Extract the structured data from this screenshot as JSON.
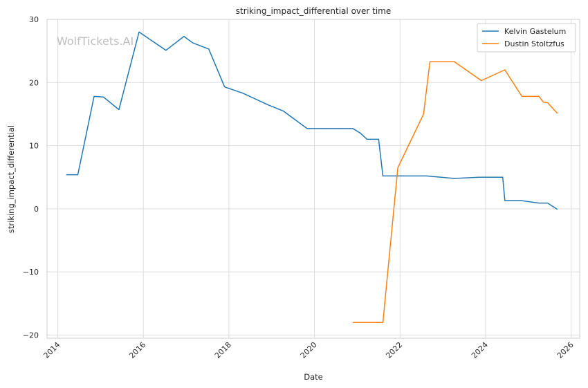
{
  "watermark": "WolfTickets.AI",
  "chart_data": {
    "type": "line",
    "title": "striking_impact_differential over time",
    "xlabel": "Date",
    "ylabel": "striking_impact_differential",
    "xlim": [
      2013.75,
      2026.2
    ],
    "ylim": [
      -20.5,
      30
    ],
    "x_ticks": [
      2014,
      2016,
      2018,
      2020,
      2022,
      2024,
      2026
    ],
    "x_tick_labels": [
      "2014",
      "2016",
      "2018",
      "2020",
      "2022",
      "2024",
      "2026"
    ],
    "y_ticks": [
      -20,
      -10,
      0,
      10,
      20,
      30
    ],
    "y_tick_labels": [
      "−20",
      "−10",
      "0",
      "10",
      "20",
      "30"
    ],
    "grid": true,
    "legend_position": "top-right",
    "series": [
      {
        "name": "Kelvin Gastelum",
        "color": "#1f77b4",
        "x": [
          2014.2,
          2014.47,
          2014.85,
          2015.07,
          2015.43,
          2015.9,
          2016.53,
          2016.95,
          2017.15,
          2017.53,
          2017.9,
          2018.33,
          2018.9,
          2019.27,
          2019.83,
          2020.9,
          2021.07,
          2021.23,
          2021.5,
          2021.6,
          2022.62,
          2023.27,
          2023.85,
          2024.4,
          2024.45,
          2024.83,
          2025.25,
          2025.45,
          2025.68
        ],
        "y": [
          5.4,
          5.4,
          17.8,
          17.7,
          15.7,
          28.0,
          25.1,
          27.3,
          26.3,
          25.3,
          19.3,
          18.3,
          16.5,
          15.5,
          12.7,
          12.7,
          12.0,
          11.0,
          11.0,
          5.2,
          5.2,
          4.8,
          5.0,
          5.0,
          1.3,
          1.3,
          0.9,
          0.9,
          -0.1
        ]
      },
      {
        "name": "Dustin Stoltzfus",
        "color": "#ff7f0e",
        "x": [
          2020.9,
          2021.6,
          2021.95,
          2022.55,
          2022.7,
          2023.27,
          2023.9,
          2024.45,
          2024.85,
          2025.25,
          2025.35,
          2025.45,
          2025.68
        ],
        "y": [
          -18.0,
          -18.0,
          6.5,
          15.0,
          23.3,
          23.3,
          20.3,
          22.0,
          17.8,
          17.8,
          16.9,
          16.8,
          15.1
        ]
      }
    ]
  }
}
